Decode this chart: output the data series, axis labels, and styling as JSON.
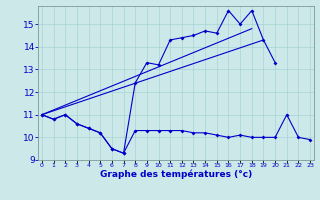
{
  "xlabel": "Graphe des températures (°c)",
  "background_color": "#cce8e8",
  "line_color": "#0000cc",
  "x_hours": [
    0,
    1,
    2,
    3,
    4,
    5,
    6,
    7,
    8,
    9,
    10,
    11,
    12,
    13,
    14,
    15,
    16,
    17,
    18,
    19,
    20,
    21,
    22,
    23
  ],
  "temp_actual": [
    11.0,
    10.8,
    11.0,
    10.6,
    10.4,
    10.2,
    9.5,
    9.3,
    10.3,
    10.3,
    10.3,
    10.3,
    10.3,
    10.2,
    10.2,
    10.1,
    10.0,
    10.1,
    10.0,
    10.0,
    10.0,
    11.0,
    10.0,
    9.9
  ],
  "temp_max": [
    11.0,
    10.8,
    11.0,
    10.6,
    10.4,
    10.2,
    9.5,
    9.3,
    12.4,
    13.3,
    13.2,
    14.3,
    14.4,
    14.5,
    14.7,
    14.6,
    15.6,
    15.0,
    15.6,
    14.3,
    13.3,
    null,
    null,
    null
  ],
  "trend1_x": [
    0,
    18
  ],
  "trend1_y": [
    11.0,
    14.8
  ],
  "trend2_x": [
    0,
    19
  ],
  "trend2_y": [
    11.0,
    14.3
  ],
  "ylim": [
    9.0,
    15.8
  ],
  "yticks": [
    9,
    10,
    11,
    12,
    13,
    14,
    15
  ],
  "xlim": [
    -0.3,
    23.3
  ],
  "marker_size": 2.0,
  "line_width": 0.8
}
